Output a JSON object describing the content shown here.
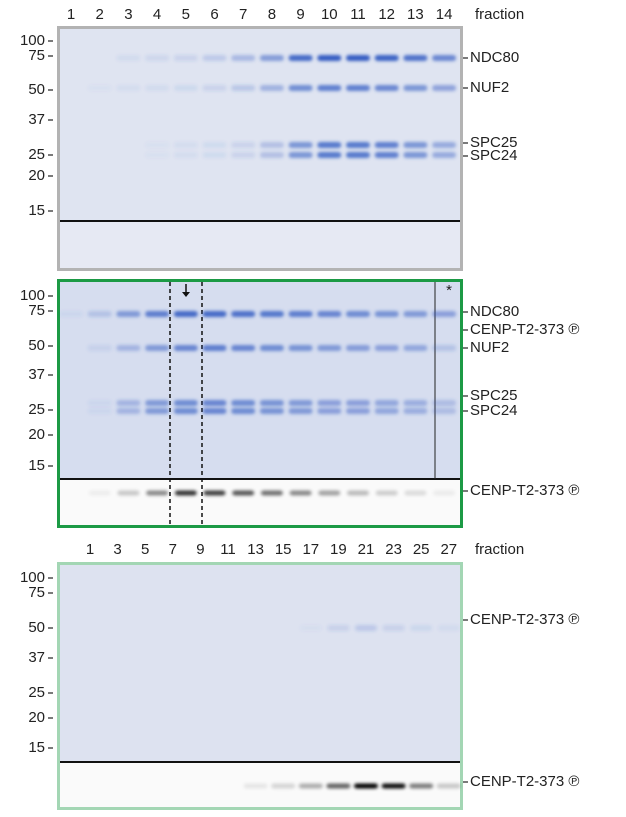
{
  "panels": [
    {
      "lanes": [
        "1",
        "2",
        "3",
        "4",
        "5",
        "6",
        "7",
        "8",
        "9",
        "10",
        "11",
        "12",
        "13",
        "14"
      ],
      "lanes_label": "fraction",
      "markers": [
        "100",
        "75",
        "50",
        "37",
        "25",
        "20",
        "15"
      ],
      "bands": [
        "NDC80",
        "NUF2",
        "SPC25",
        "SPC24"
      ]
    },
    {
      "markers": [
        "100",
        "75",
        "50",
        "37",
        "25",
        "20",
        "15"
      ],
      "bands": [
        "NDC80",
        "CENP-T2-373 ℗",
        "NUF2",
        "SPC25",
        "SPC24",
        "CENP-T2-373 ℗"
      ],
      "asterisk": "*"
    },
    {
      "lanes": [
        "1",
        "3",
        "5",
        "7",
        "9",
        "11",
        "13",
        "15",
        "17",
        "19",
        "21",
        "23",
        "25",
        "27"
      ],
      "lanes_label": "fraction",
      "markers": [
        "100",
        "75",
        "50",
        "37",
        "25",
        "20",
        "15"
      ],
      "bands": [
        "CENP-T2-373 ℗",
        "CENP-T2-373 ℗"
      ]
    }
  ]
}
